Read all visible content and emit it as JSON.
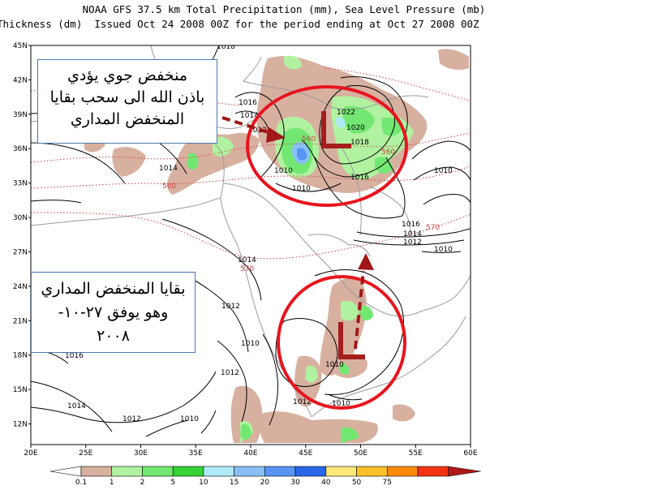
{
  "header": {
    "line1": "NOAA GFS 37.5 km Total Precipitation (mm), Sea Level Pressure (mb)",
    "line2": "Thickness (dm)  Issued Oct 24 2008 00Z for the period ending at Oct 27 2008 00Z"
  },
  "map": {
    "lat_labels": [
      "45N",
      "42N",
      "39N",
      "36N",
      "33N",
      "30N",
      "27N",
      "24N",
      "21N",
      "18N",
      "15N",
      "12N"
    ],
    "lon_labels": [
      "20E",
      "25E",
      "30E",
      "35E",
      "40E",
      "45E",
      "50E",
      "55E",
      "60E"
    ],
    "isobar_labels": [
      {
        "text": "1018"
      },
      {
        "text": "1016"
      },
      {
        "text": "1014"
      },
      {
        "text": "1012"
      },
      {
        "text": "1022"
      },
      {
        "text": "1020"
      },
      {
        "text": "1018"
      },
      {
        "text": "1016"
      },
      {
        "text": "1010"
      },
      {
        "text": "1010"
      },
      {
        "text": "1016"
      },
      {
        "text": "1014"
      },
      {
        "text": "1012"
      },
      {
        "text": "1010"
      },
      {
        "text": "1014"
      },
      {
        "text": "1012"
      },
      {
        "text": "1010"
      },
      {
        "text": "1012"
      },
      {
        "text": "1010"
      },
      {
        "text": "1016"
      },
      {
        "text": "1014"
      },
      {
        "text": "1012"
      },
      {
        "text": "1010"
      },
      {
        "text": "1012"
      },
      {
        "text": "1010"
      },
      {
        "text": "1014"
      },
      {
        "text": "1010"
      }
    ],
    "thickness_labels": [
      "560",
      "560",
      "560",
      "570",
      "570"
    ],
    "low_marker": "L",
    "colors": {
      "isobar": "#000000",
      "thickness": "#d04040",
      "coast": "#9a9a9a",
      "circle": "#e8141e",
      "arrow": "#a01818",
      "low_letter": "#a51e1e",
      "note_border": "#4a7ab0"
    }
  },
  "annotations": {
    "top_box": [
      "منخفض جوي  يؤدي",
      "باذن الله الى سحب بقايا",
      "المنخفض المداري"
    ],
    "bottom_box": [
      "بقايا المنخفض المداري",
      "وهو يوفق ٢٧-١٠-",
      "٢٠٠٨"
    ]
  },
  "colorbar": {
    "colors": [
      "#d8b0a0",
      "#b0f2a0",
      "#72e872",
      "#36d236",
      "#aeeaf6",
      "#88c0f6",
      "#5894f4",
      "#2a66e8",
      "#fde878",
      "#fcc028",
      "#fb8a08",
      "#f23414",
      "#b01818"
    ],
    "labels": [
      "0.1",
      "1",
      "2",
      "5",
      "10",
      "15",
      "20",
      "30",
      "40",
      "50",
      "75"
    ]
  }
}
